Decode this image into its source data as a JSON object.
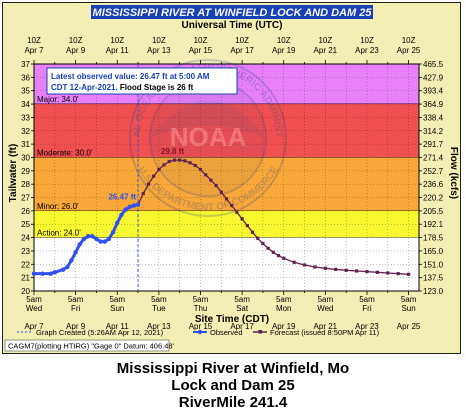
{
  "header": {
    "title": "MISSISSIPPI RIVER AT WINFIELD LOCK AND DAM 25",
    "top_axis_label": "Universal Time (UTC)",
    "bottom_axis_label": "Site Time (CDT)"
  },
  "info_box": {
    "line1": "Latest observed value: 26.47 ft at 5:00 AM",
    "line2_a": "CDT 12-Apr-2021. ",
    "line2_b": "Flood Stage is 26 ft"
  },
  "watermark": {
    "arc_top": "NATIONAL OCEANIC AND ATMOSPHERIC ADMINISTRATION",
    "arc_bottom": "U.S. DEPARTMENT OF COMMERCE",
    "center": "NOAA"
  },
  "legend": {
    "graph_created": "Graph Created (5:26AM Apr 12, 2021)",
    "observed": "Observed",
    "forecast": "Forecast (issued 8:50PM Apr 11)"
  },
  "footer_note": "CAGM7(plotting HTIRG) \"Gage 0\" Datum: 406.48'",
  "caption": {
    "line1": "Mississippi River at Winfield, Mo",
    "line2": "Lock and Dam 25",
    "line3": "RiverMile 241.4"
  },
  "colors": {
    "major": "#e880f8",
    "moderate": "#f05050",
    "minor": "#f8a838",
    "action": "#f8f830",
    "normal": "#ffffff",
    "observed": "#3050f0",
    "forecast": "#602050",
    "title_bg": "#1840b8",
    "title_text": "#f8f8ff",
    "frame_bg": "#f3eeb4"
  },
  "chart_data": {
    "type": "line",
    "title": "MISSISSIPPI RIVER AT WINFIELD LOCK AND DAM 25",
    "xlabel": "Site Time (CDT)",
    "x2label": "Universal Time (UTC)",
    "ylabel": "Tailwater (ft)",
    "y2label": "Flow (kcfs)",
    "ylim": [
      20,
      37
    ],
    "y_ticks": [
      20,
      21,
      22,
      23,
      24,
      25,
      26,
      27,
      28,
      29,
      30,
      31,
      32,
      33,
      34,
      35,
      36,
      37
    ],
    "y2_ticks": [
      "123.0",
      "137.5",
      "151.0",
      "165.0",
      "178.5",
      "192.1",
      "205.5",
      "220.2",
      "236.6",
      "252.7",
      "271.4",
      "291.7",
      "314.2",
      "338.4",
      "364.9",
      "393.4",
      "427.9",
      "465.5"
    ],
    "x_days": 18.5,
    "x_tick_days": [
      0,
      1,
      2,
      3,
      4,
      5,
      6,
      7,
      8,
      9,
      10,
      11,
      12,
      13,
      14,
      15,
      16,
      17,
      18
    ],
    "x_major_days": [
      0,
      2,
      4,
      6,
      8,
      10,
      12,
      14,
      16,
      18
    ],
    "bottom_tick_labels": [
      {
        "day": 0,
        "time": "5am",
        "dow": "Wed",
        "date": "Apr 7"
      },
      {
        "day": 2,
        "time": "5am",
        "dow": "Fri",
        "date": "Apr 9"
      },
      {
        "day": 4,
        "time": "5am",
        "dow": "Sun",
        "date": "Apr 11"
      },
      {
        "day": 6,
        "time": "5am",
        "dow": "Tue",
        "date": "Apr 13"
      },
      {
        "day": 8,
        "time": "5am",
        "dow": "Thu",
        "date": "Apr 15"
      },
      {
        "day": 10,
        "time": "5am",
        "dow": "Sat",
        "date": "Apr 17"
      },
      {
        "day": 12,
        "time": "5am",
        "dow": "Mon",
        "date": "Apr 19"
      },
      {
        "day": 14,
        "time": "5am",
        "dow": "Wed",
        "date": "Apr 21"
      },
      {
        "day": 16,
        "time": "5am",
        "dow": "Fri",
        "date": "Apr 23"
      },
      {
        "day": 18,
        "time": "5am",
        "dow": "Sun",
        "date": "Apr 25"
      }
    ],
    "top_tick_labels": [
      {
        "day": 0,
        "time": "10Z",
        "date": "Apr 7"
      },
      {
        "day": 2,
        "time": "10Z",
        "date": "Apr 9"
      },
      {
        "day": 4,
        "time": "10Z",
        "date": "Apr 11"
      },
      {
        "day": 6,
        "time": "10Z",
        "date": "Apr 13"
      },
      {
        "day": 8,
        "time": "10Z",
        "date": "Apr 15"
      },
      {
        "day": 10,
        "time": "10Z",
        "date": "Apr 17"
      },
      {
        "day": 12,
        "time": "10Z",
        "date": "Apr 19"
      },
      {
        "day": 14,
        "time": "10Z",
        "date": "Apr 21"
      },
      {
        "day": 16,
        "time": "10Z",
        "date": "Apr 23"
      },
      {
        "day": 18,
        "time": "10Z",
        "date": "Apr 25"
      }
    ],
    "flood_categories": [
      {
        "name": "Major",
        "label": "Major: 34.0'",
        "from": 34,
        "to": 37,
        "color": "#e880f8"
      },
      {
        "name": "Moderate",
        "label": "Moderate: 30.0'",
        "from": 30,
        "to": 34,
        "color": "#f05050"
      },
      {
        "name": "Minor",
        "label": "Minor: 26.0'",
        "from": 26,
        "to": 30,
        "color": "#f8a838"
      },
      {
        "name": "Action",
        "label": "Action: 24.0'",
        "from": 24,
        "to": 26,
        "color": "#f8f830"
      },
      {
        "name": "Normal",
        "label": "",
        "from": 20,
        "to": 24,
        "color": "#ffffff"
      }
    ],
    "graph_created_day": 5.0,
    "observed_label": "26.47 ft",
    "forecast_peak_label": "29.8 ft",
    "series": [
      {
        "name": "Observed",
        "color": "#3050f0",
        "x": [
          0,
          0.4,
          0.8,
          1.0,
          1.4,
          1.6,
          1.8,
          2.0,
          2.2,
          2.4,
          2.6,
          2.8,
          3.0,
          3.2,
          3.4,
          3.6,
          3.8,
          4.0,
          4.2,
          4.4,
          4.6,
          4.8,
          5.0
        ],
        "y": [
          21.3,
          21.3,
          21.3,
          21.4,
          21.6,
          21.8,
          22.3,
          22.9,
          23.5,
          23.9,
          24.1,
          24.1,
          23.9,
          23.7,
          23.7,
          23.9,
          24.4,
          25.1,
          25.7,
          26.1,
          26.3,
          26.4,
          26.47
        ]
      },
      {
        "name": "Forecast",
        "color": "#602050",
        "x": [
          5.0,
          5.25,
          5.5,
          5.75,
          6.0,
          6.25,
          6.5,
          6.75,
          7.0,
          7.25,
          7.5,
          7.75,
          8.0,
          8.25,
          8.5,
          8.75,
          9.0,
          9.25,
          9.5,
          9.75,
          10.0,
          10.25,
          10.5,
          10.75,
          11.0,
          11.25,
          11.5,
          11.75,
          12.0,
          12.5,
          13.0,
          13.5,
          14.0,
          14.5,
          15.0,
          15.5,
          16.0,
          16.5,
          17.0,
          17.5,
          18.0
        ],
        "y": [
          26.47,
          27.3,
          28.0,
          28.6,
          29.1,
          29.45,
          29.7,
          29.8,
          29.8,
          29.75,
          29.6,
          29.4,
          29.1,
          28.7,
          28.3,
          27.9,
          27.4,
          26.9,
          26.4,
          25.9,
          25.4,
          24.9,
          24.4,
          23.95,
          23.55,
          23.2,
          22.9,
          22.65,
          22.45,
          22.15,
          21.95,
          21.8,
          21.7,
          21.62,
          21.55,
          21.5,
          21.45,
          21.4,
          21.35,
          21.3,
          21.25
        ]
      }
    ]
  }
}
